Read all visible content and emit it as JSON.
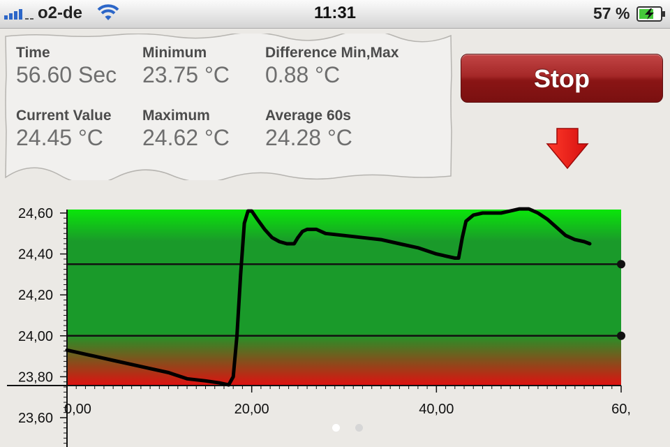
{
  "status_bar": {
    "carrier": "o2-de",
    "time": "11:31",
    "battery": "57 %"
  },
  "stats": [
    {
      "label": "Time",
      "value": "56.60 Sec"
    },
    {
      "label": "Minimum",
      "value": "23.75 °C"
    },
    {
      "label": "Difference Min,Max",
      "value": "0.88 °C"
    },
    {
      "label": "Current Value",
      "value": "24.45 °C"
    },
    {
      "label": "Maximum",
      "value": "24.62 °C"
    },
    {
      "label": "Average 60s",
      "value": "24.28 °C"
    }
  ],
  "controls": {
    "stop_label": "Stop",
    "arrow_icon": "red-down-arrow-icon"
  },
  "pager": {
    "pages": 2,
    "current": 0
  },
  "chart_data": {
    "type": "line",
    "title": "",
    "xlabel": "",
    "ylabel": "",
    "xlim": [
      0,
      60
    ],
    "ylim": [
      23.6,
      24.6
    ],
    "x_ticks": [
      "0,00",
      "20,00",
      "40,00",
      "60,"
    ],
    "y_ticks": [
      "23,60",
      "23,80",
      "24,00",
      "24,20",
      "24,40",
      "24,60"
    ],
    "threshold_lines": [
      24.35,
      24.0
    ],
    "background": {
      "type": "gradient",
      "top_color": "#0ae60a",
      "middle_color": "#1a9a2a",
      "bottom_color": "#e01010"
    },
    "series": [
      {
        "color": "#000000",
        "x": [
          0,
          1,
          3,
          5,
          7,
          9,
          11,
          13,
          15,
          16.5,
          17.5,
          18,
          18.4,
          18.8,
          19.2,
          19.6,
          20,
          20.6,
          21.4,
          22.2,
          23,
          23.8,
          24.6,
          25,
          25.5,
          26,
          27,
          28,
          30,
          32,
          34,
          36,
          38,
          40,
          42,
          42.4,
          42.8,
          43.2,
          44,
          45,
          46,
          47,
          48,
          49,
          50,
          51,
          52,
          53,
          54,
          55,
          56,
          56.6
        ],
        "y": [
          23.93,
          23.92,
          23.9,
          23.88,
          23.86,
          23.84,
          23.82,
          23.79,
          23.78,
          23.77,
          23.76,
          23.8,
          24.0,
          24.3,
          24.55,
          24.61,
          24.61,
          24.57,
          24.52,
          24.48,
          24.46,
          24.45,
          24.45,
          24.48,
          24.51,
          24.52,
          24.52,
          24.5,
          24.49,
          24.48,
          24.47,
          24.45,
          24.43,
          24.4,
          24.38,
          24.38,
          24.48,
          24.56,
          24.59,
          24.6,
          24.6,
          24.6,
          24.61,
          24.62,
          24.62,
          24.6,
          24.57,
          24.53,
          24.49,
          24.47,
          24.46,
          24.45
        ]
      }
    ]
  }
}
